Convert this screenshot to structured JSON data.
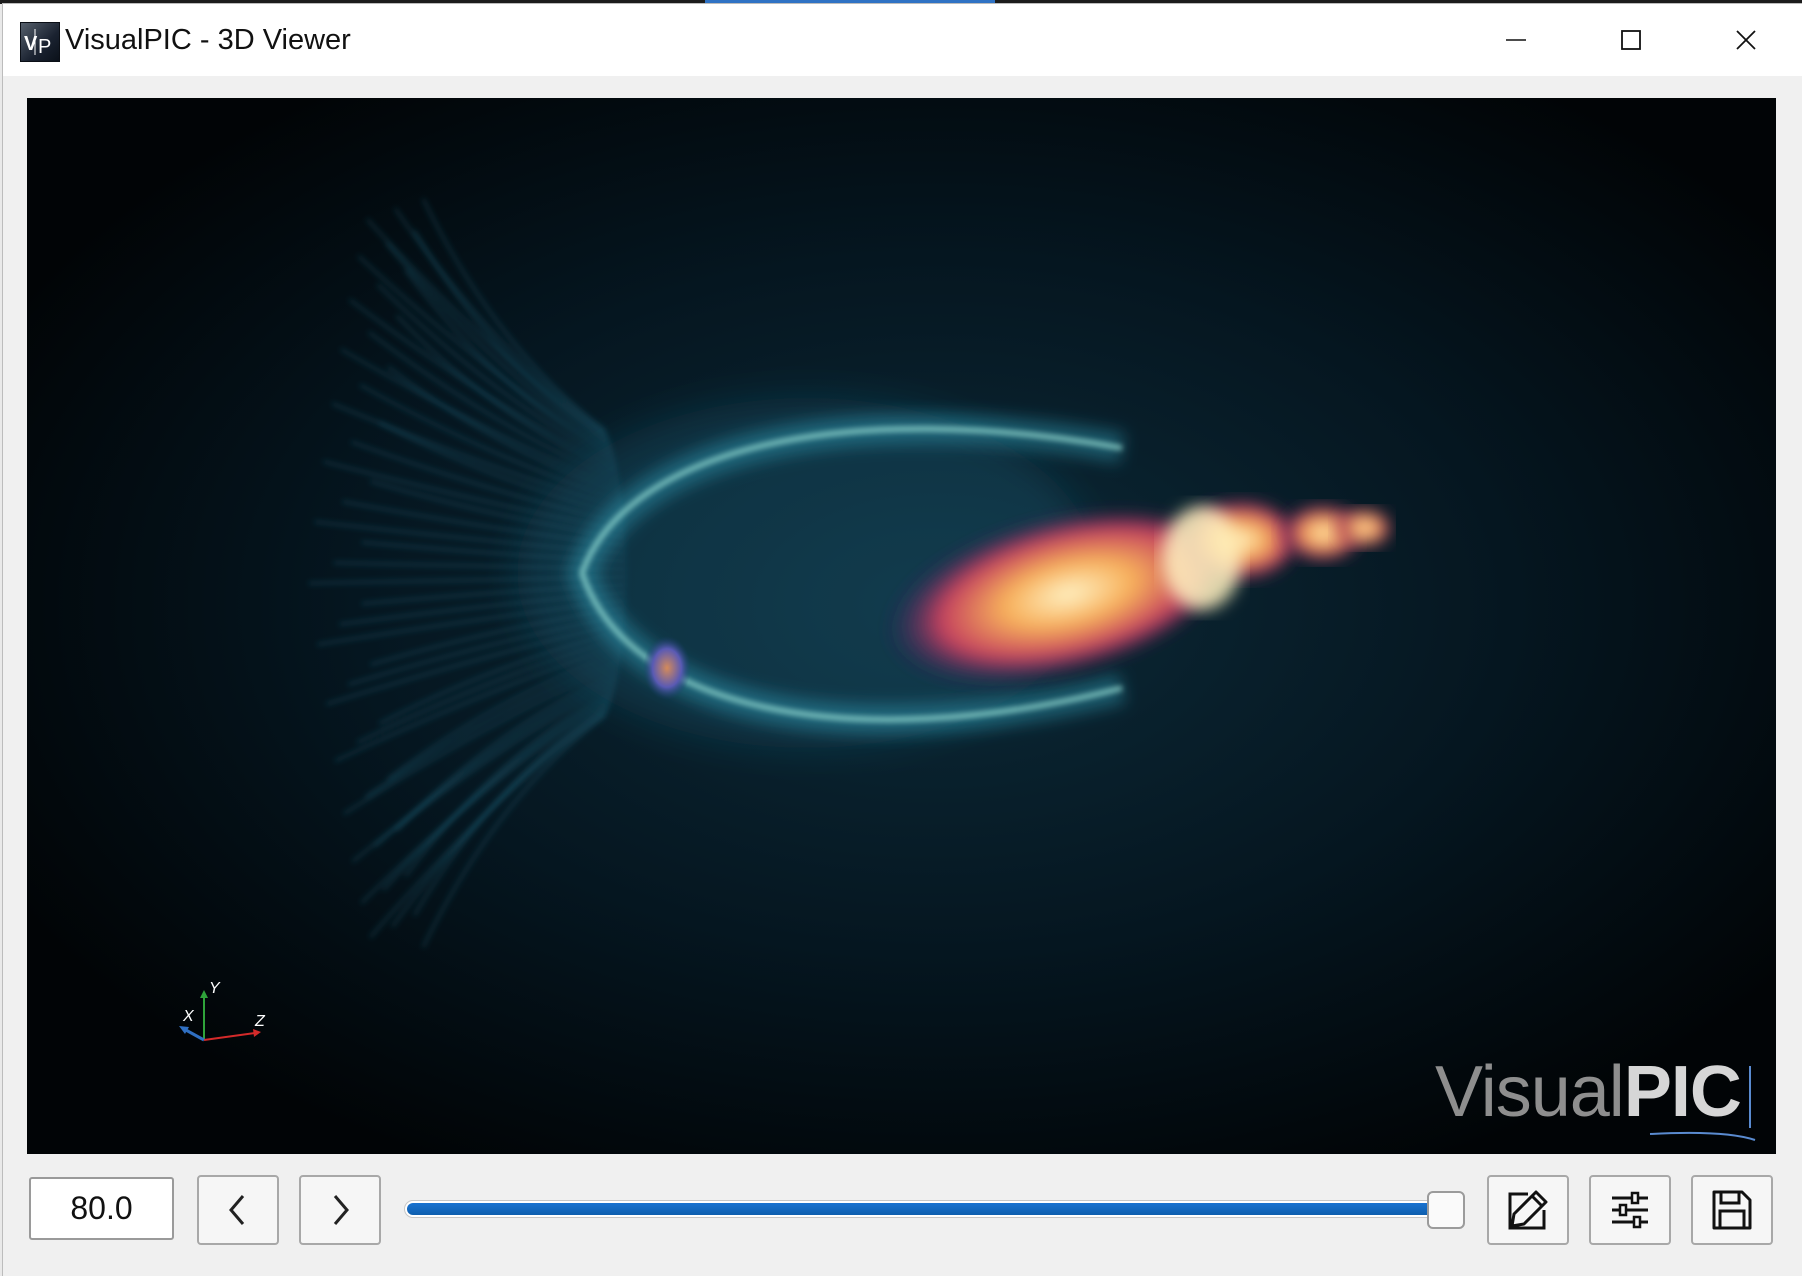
{
  "window": {
    "title": "VisualPIC - 3D Viewer",
    "app_icon": "visualpic-logo-icon",
    "controls": [
      "minimize-icon",
      "maximize-icon",
      "close-icon"
    ]
  },
  "viewer": {
    "axes": {
      "x_label": "X",
      "y_label": "Y",
      "z_label": "Z"
    },
    "watermark": {
      "light_part": "Visual",
      "bold_part": "PIC"
    }
  },
  "toolbar": {
    "time_value": "80.0",
    "prev_icon": "chevron-left-icon",
    "next_icon": "chevron-right-icon",
    "slider": {
      "min": 0,
      "max": 100,
      "value_fraction": 1.0
    },
    "edit_icon": "edit-icon",
    "settings_icon": "sliders-icon",
    "save_icon": "save-icon"
  },
  "colors": {
    "slider_fill": "#1a73d0",
    "viewport_bg": "#010406",
    "wake_cyan": "#3ab7d6",
    "beam_orange": "#f4a24c"
  }
}
